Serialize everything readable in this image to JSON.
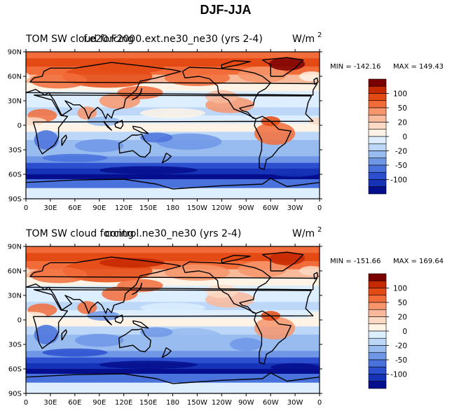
{
  "figure_title": "DJF-JJA",
  "panels": [
    {
      "left_title": "TOM SW cloud forcing",
      "center_title": "f.e20.F2000.ext.ne30_ne30 (yrs 2-4)",
      "units_main": "W/m",
      "units_sup": "2",
      "min_label": "MIN = -142.16",
      "max_label": "MAX = 149.43",
      "lat_labels": [
        "90N",
        "60N",
        "30N",
        "0",
        "30S",
        "60S",
        "90S"
      ],
      "lon_labels": [
        "0",
        "30E",
        "60E",
        "90E",
        "120E",
        "150E",
        "180",
        "150W",
        "120W",
        "90W",
        "60W",
        "30W",
        "0"
      ]
    },
    {
      "left_title": "TOM SW cloud forcing",
      "center_title": "control.ne30_ne30 (yrs 2-4)",
      "units_main": "W/m",
      "units_sup": "2",
      "min_label": "MIN = -151.66",
      "max_label": "MAX = 169.64",
      "lat_labels": [
        "90N",
        "60N",
        "30N",
        "0",
        "30S",
        "60S",
        "90S"
      ],
      "lon_labels": [
        "0",
        "30E",
        "60E",
        "90E",
        "120E",
        "150E",
        "180",
        "150W",
        "120W",
        "90W",
        "60W",
        "30W",
        "0"
      ]
    }
  ],
  "colorbar": {
    "labels": [
      "100",
      "50",
      "20",
      "0",
      "-20",
      "-50",
      "-100"
    ],
    "colors": [
      "#7a0000",
      "#c62800",
      "#e44a14",
      "#f26c3a",
      "#f7956c",
      "#f9b99b",
      "#fcd9c4",
      "#fff3e6",
      "#dceeff",
      "#bcd7f7",
      "#98bcf0",
      "#6f97e6",
      "#4a72dc",
      "#2b4fcf",
      "#1632b6",
      "#050e8c"
    ]
  },
  "chart_data": [
    {
      "type": "heatmap",
      "title": "TOM SW cloud forcing — f.e20.F2000.ext.ne30_ne30 (yrs 2-4)",
      "units": "W/m2",
      "x_ticks": [
        "0",
        "30E",
        "60E",
        "90E",
        "120E",
        "150E",
        "180",
        "150W",
        "120W",
        "90W",
        "60W",
        "30W",
        "0"
      ],
      "y_ticks": [
        "90N",
        "60N",
        "30N",
        "0",
        "30S",
        "60S",
        "90S"
      ],
      "min": -142.16,
      "max": 149.43,
      "contour_levels": [
        -100,
        -50,
        -20,
        0,
        20,
        50,
        100
      ]
    },
    {
      "type": "heatmap",
      "title": "TOM SW cloud forcing — control.ne30_ne30 (yrs 2-4)",
      "units": "W/m2",
      "x_ticks": [
        "0",
        "30E",
        "60E",
        "90E",
        "120E",
        "150E",
        "180",
        "150W",
        "120W",
        "90W",
        "60W",
        "30W",
        "0"
      ],
      "y_ticks": [
        "90N",
        "60N",
        "30N",
        "0",
        "30S",
        "60S",
        "90S"
      ],
      "min": -151.66,
      "max": 169.64,
      "contour_levels": [
        -100,
        -50,
        -20,
        0,
        20,
        50,
        100
      ]
    }
  ]
}
